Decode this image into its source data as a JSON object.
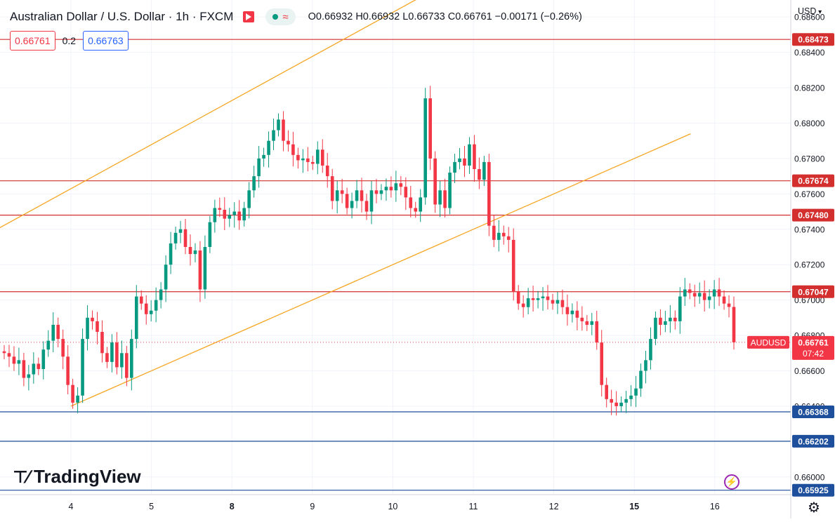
{
  "header": {
    "title": "Australian Dollar / U.S. Dollar · 1h · FXCM",
    "ohlc": "O0.66932 H0.66932 L0.66733 C0.66761 −0.00171 (−0.26%)",
    "sell_price": "0.66761",
    "spread": "0.2",
    "buy_price": "0.66763",
    "currency": "USD"
  },
  "brand": {
    "name": "TradingView"
  },
  "colors": {
    "up": "#089981",
    "down": "#f23645",
    "resistance": "#d32f2f",
    "support": "#1e4f9c",
    "channel": "#f5a623",
    "grid": "#f0f3fa"
  },
  "icons": [
    "flag-icon",
    "status-dot-icon",
    "wave-icon",
    "lightning-icon",
    "gear-icon",
    "tradingview-logo-icon"
  ],
  "chart_data": {
    "type": "candlestick",
    "symbol": "AUDUSD",
    "timeframe": "1h",
    "ylim": [
      0.659,
      0.6868
    ],
    "y_ticks": [
      0.66,
      0.662,
      0.664,
      0.666,
      0.668,
      0.67,
      0.672,
      0.674,
      0.676,
      0.678,
      0.68,
      0.682,
      0.684,
      0.686
    ],
    "x_ticks": [
      {
        "label": "4",
        "t": 4
      },
      {
        "label": "5",
        "t": 5
      },
      {
        "label": "8",
        "t": 6,
        "bold": true
      },
      {
        "label": "9",
        "t": 7
      },
      {
        "label": "10",
        "t": 8
      },
      {
        "label": "11",
        "t": 9
      },
      {
        "label": "12",
        "t": 10
      },
      {
        "label": "15",
        "t": 11,
        "bold": true
      },
      {
        "label": "16",
        "t": 12
      }
    ],
    "current": {
      "label": "AUDUSD",
      "price": "0.66761",
      "countdown": "07:42",
      "value": 0.66761
    },
    "resistance_levels": [
      {
        "label": "0.68473",
        "value": 0.68473
      },
      {
        "label": "0.67674",
        "value": 0.67674
      },
      {
        "label": "0.67480",
        "value": 0.6748
      },
      {
        "label": "0.67047",
        "value": 0.67047
      }
    ],
    "support_levels": [
      {
        "label": "0.66368",
        "value": 0.66368
      },
      {
        "label": "0.66202",
        "value": 0.66202
      },
      {
        "label": "0.65925",
        "value": 0.65925
      }
    ],
    "channel": [
      {
        "t0": 3.0,
        "p0": 0.6738,
        "t1": 9.5,
        "p1": 0.69
      },
      {
        "t0": 4.0,
        "p0": 0.664,
        "t1": 11.7,
        "p1": 0.6794
      }
    ],
    "closes": [
      0.667,
      0.6668,
      0.6664,
      0.6666,
      0.6656,
      0.6658,
      0.6664,
      0.6661,
      0.6672,
      0.6677,
      0.6686,
      0.6678,
      0.6668,
      0.6652,
      0.6642,
      0.6646,
      0.6678,
      0.669,
      0.6688,
      0.6682,
      0.667,
      0.6665,
      0.6676,
      0.6662,
      0.667,
      0.6656,
      0.6678,
      0.6702,
      0.6698,
      0.6692,
      0.6694,
      0.67,
      0.6706,
      0.672,
      0.6732,
      0.6738,
      0.674,
      0.673,
      0.6726,
      0.6728,
      0.6706,
      0.673,
      0.6744,
      0.6752,
      0.6751,
      0.6746,
      0.6748,
      0.675,
      0.6745,
      0.6752,
      0.6762,
      0.677,
      0.678,
      0.6782,
      0.679,
      0.6796,
      0.6802,
      0.679,
      0.6788,
      0.6782,
      0.6779,
      0.678,
      0.6778,
      0.6777,
      0.6785,
      0.6776,
      0.677,
      0.6756,
      0.6762,
      0.676,
      0.6752,
      0.6756,
      0.6762,
      0.6756,
      0.675,
      0.6762,
      0.676,
      0.6762,
      0.6764,
      0.6762,
      0.6766,
      0.6764,
      0.6758,
      0.6752,
      0.675,
      0.6758,
      0.6814,
      0.678,
      0.6754,
      0.6762,
      0.6752,
      0.6772,
      0.6778,
      0.678,
      0.6776,
      0.6788,
      0.6774,
      0.6768,
      0.6778,
      0.6742,
      0.6734,
      0.6738,
      0.6736,
      0.6734,
      0.6705,
      0.6698,
      0.6696,
      0.6701,
      0.67,
      0.6701,
      0.6702,
      0.67,
      0.6698,
      0.67,
      0.6696,
      0.6692,
      0.6694,
      0.669,
      0.6688,
      0.6686,
      0.6688,
      0.6676,
      0.6652,
      0.6644,
      0.6642,
      0.664,
      0.6642,
      0.6644,
      0.6646,
      0.665,
      0.666,
      0.6666,
      0.6678,
      0.669,
      0.6686,
      0.6688,
      0.669,
      0.6688,
      0.6702,
      0.6706,
      0.6704,
      0.6702,
      0.6704,
      0.67,
      0.6702,
      0.6706,
      0.6702,
      0.6698,
      0.66961,
      0.66761
    ]
  }
}
